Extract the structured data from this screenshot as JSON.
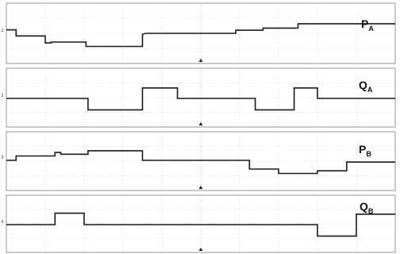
{
  "chart_data": {
    "type": "line",
    "x": {
      "t0": 0,
      "t1": 100
    },
    "panels": [
      {
        "name": "P",
        "sub": "A",
        "marker": "2",
        "level_range": [
          -3,
          3
        ],
        "points": [
          [
            0,
            0.4
          ],
          [
            5,
            0.4
          ],
          [
            5,
            -0.3
          ],
          [
            20,
            -0.3
          ],
          [
            20,
            -1.1
          ],
          [
            23,
            -1.1
          ],
          [
            23,
            -1.0
          ],
          [
            41,
            -1.0
          ],
          [
            41,
            -1.5
          ],
          [
            70,
            -1.5
          ],
          [
            70,
            -0.1
          ],
          [
            72,
            0
          ],
          [
            118,
            0
          ],
          [
            118,
            0.35
          ],
          [
            132,
            0.35
          ],
          [
            132,
            0.6
          ],
          [
            150,
            0.6
          ],
          [
            150,
            1.1
          ],
          [
            175,
            1.1
          ],
          [
            175,
            1.1
          ],
          [
            200,
            1.1
          ]
        ],
        "t_end": 200
      },
      {
        "name": "Q",
        "sub": "A",
        "marker": "2",
        "level_range": [
          -3,
          3
        ],
        "points": [
          [
            0,
            0
          ],
          [
            42,
            0
          ],
          [
            42,
            -1.2
          ],
          [
            70,
            -1.2
          ],
          [
            70,
            1.1
          ],
          [
            88,
            1.1
          ],
          [
            88,
            0
          ],
          [
            128,
            0
          ],
          [
            128,
            -1.2
          ],
          [
            148,
            -1.2
          ],
          [
            148,
            1.1
          ],
          [
            160,
            1.1
          ],
          [
            160,
            0
          ],
          [
            200,
            0
          ]
        ],
        "t_end": 200
      },
      {
        "name": "P",
        "sub": "B",
        "marker": "3",
        "level_range": [
          -3,
          3
        ],
        "points": [
          [
            0,
            0
          ],
          [
            5,
            0
          ],
          [
            5,
            0.5
          ],
          [
            25,
            0.5
          ],
          [
            25,
            0.9
          ],
          [
            28,
            0.9
          ],
          [
            28,
            0.7
          ],
          [
            42,
            0.7
          ],
          [
            42,
            1.1
          ],
          [
            70,
            1.1
          ],
          [
            70,
            0
          ],
          [
            125,
            0
          ],
          [
            125,
            -1.0
          ],
          [
            140,
            -1.0
          ],
          [
            140,
            -1.5
          ],
          [
            160,
            -1.5
          ],
          [
            160,
            -1.2
          ],
          [
            175,
            -1.2
          ],
          [
            175,
            -0.2
          ],
          [
            200,
            -0.2
          ]
        ],
        "t_end": 200
      },
      {
        "name": "Q",
        "sub": "B",
        "marker": "4",
        "level_range": [
          -3,
          3
        ],
        "points": [
          [
            0,
            0
          ],
          [
            25,
            0
          ],
          [
            25,
            1.2
          ],
          [
            40,
            1.2
          ],
          [
            40,
            0
          ],
          [
            160,
            0
          ],
          [
            160,
            -1.2
          ],
          [
            180,
            -1.2
          ],
          [
            180,
            1.1
          ],
          [
            200,
            1.1
          ]
        ],
        "t_end": 200
      }
    ]
  }
}
